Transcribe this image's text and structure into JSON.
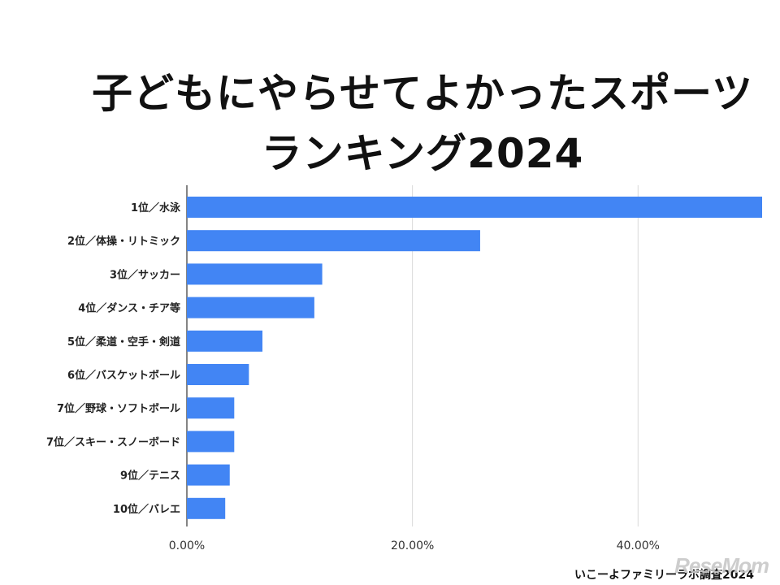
{
  "title": {
    "line1": "子どもにやらせてよかったスポーツ",
    "line2": "ランキング2024"
  },
  "source": "いこーよファミリーラボ調査2024",
  "watermark": "ReseMom",
  "colors": {
    "bar": "#4285f4",
    "grid": "#d9d9d9",
    "text": "#222222"
  },
  "chart_data": {
    "type": "bar",
    "orientation": "horizontal",
    "categories": [
      "1位／水泳",
      "2位／体操・リトミック",
      "3位／サッカー",
      "4位／ダンス・チア等",
      "5位／柔道・空手・剣道",
      "6位／バスケットボール",
      "7位／野球・ソフトボール",
      "7位／スキー・スノーボード",
      "9位／テニス",
      "10位／バレエ"
    ],
    "values": [
      51.0,
      26.0,
      12.0,
      11.3,
      6.7,
      5.5,
      4.2,
      4.2,
      3.8,
      3.4
    ],
    "xlim": [
      0,
      51
    ],
    "xticks": [
      0,
      20,
      40
    ],
    "xtick_labels": [
      "0.00%",
      "20.00%",
      "40.00%"
    ],
    "grid": true
  }
}
